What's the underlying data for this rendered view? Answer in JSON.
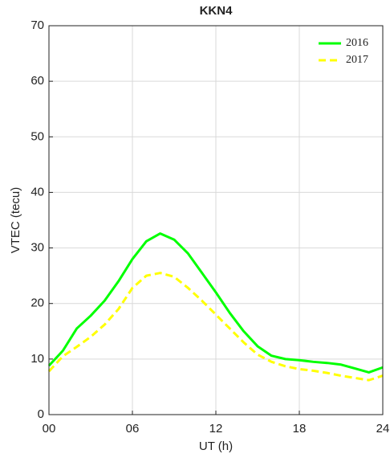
{
  "chart_data": {
    "type": "line",
    "title": "KKN4",
    "xlabel": "UT (h)",
    "ylabel": "VTEC (tecu)",
    "x": [
      0,
      1,
      2,
      3,
      4,
      5,
      6,
      7,
      8,
      9,
      10,
      11,
      12,
      13,
      14,
      15,
      16,
      17,
      18,
      19,
      20,
      21,
      22,
      23,
      24
    ],
    "series": [
      {
        "name": "2016",
        "color": "#00ff00",
        "linestyle": "solid",
        "values": [
          8.8,
          11.5,
          15.5,
          17.8,
          20.5,
          24,
          28,
          31.2,
          32.6,
          31.5,
          29,
          25.5,
          22,
          18.3,
          15,
          12.3,
          10.6,
          10,
          9.8,
          9.5,
          9.3,
          9,
          8.3,
          7.6,
          8.5
        ]
      },
      {
        "name": "2017",
        "color": "#ffff00",
        "linestyle": "dashed",
        "values": [
          7.8,
          10.5,
          12.2,
          14,
          16.2,
          19,
          22.8,
          25,
          25.5,
          24.8,
          22.8,
          20.5,
          18,
          15.5,
          13,
          10.8,
          9.5,
          8.7,
          8.2,
          7.9,
          7.5,
          7,
          6.6,
          6.2,
          7
        ]
      }
    ],
    "xlim": [
      0,
      24
    ],
    "xticks": [
      {
        "value": 0,
        "label": "00"
      },
      {
        "value": 6,
        "label": "06"
      },
      12,
      18,
      24
    ],
    "ylim": [
      0,
      70
    ],
    "yticks": [
      0,
      10,
      20,
      30,
      40,
      50,
      60,
      70
    ],
    "grid": true,
    "legend": "upper-right"
  }
}
